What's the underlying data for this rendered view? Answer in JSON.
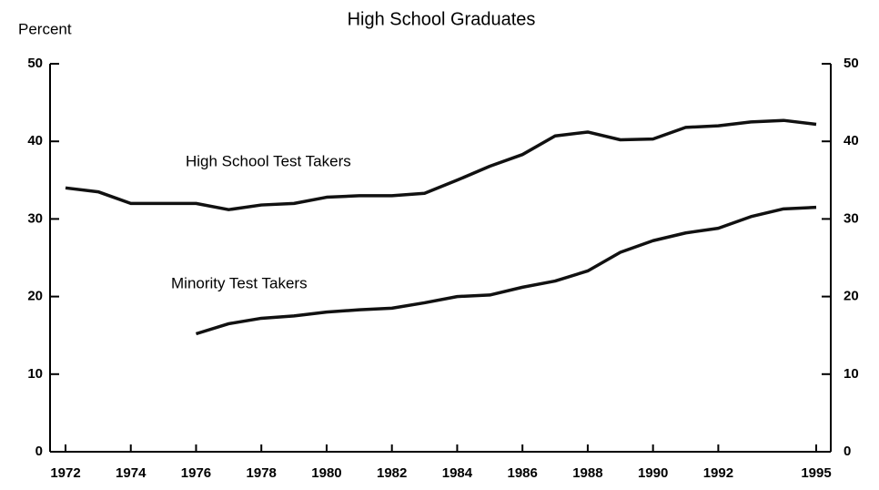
{
  "chart_data": {
    "type": "line",
    "title": "High School Graduates",
    "y_label": "Percent",
    "x": [
      1972,
      1973,
      1974,
      1975,
      1976,
      1977,
      1978,
      1979,
      1980,
      1981,
      1982,
      1983,
      1984,
      1985,
      1986,
      1987,
      1988,
      1989,
      1990,
      1991,
      1992,
      1993,
      1994,
      1995
    ],
    "series": [
      {
        "name": "High School Test Takers",
        "color": "#111111",
        "values": [
          34,
          33.5,
          32,
          32,
          32,
          31.2,
          31.8,
          32,
          32.8,
          33,
          33,
          33.3,
          35,
          36.8,
          38.3,
          40.7,
          41.2,
          40.2,
          40.3,
          41.8,
          42,
          42.5,
          42.7,
          42.2
        ]
      },
      {
        "name": "Minority Test Takers",
        "color": "#111111",
        "values": [
          null,
          null,
          null,
          null,
          15.2,
          16.5,
          17.2,
          17.5,
          18,
          18.3,
          18.5,
          19.2,
          20,
          20.2,
          21.2,
          22,
          23.3,
          25.7,
          27.2,
          28.2,
          28.8,
          30.3,
          31.3,
          31.5
        ]
      }
    ],
    "xlim": [
      1972,
      1995
    ],
    "xticks": [
      1972,
      1974,
      1976,
      1978,
      1980,
      1982,
      1984,
      1986,
      1988,
      1990,
      1992,
      1995
    ],
    "ylim": [
      0,
      50
    ],
    "yticks": [
      0,
      10,
      20,
      30,
      40,
      50
    ],
    "y2lim": [
      0,
      50
    ],
    "y2ticks": [
      0,
      10,
      20,
      30,
      40,
      50
    ]
  }
}
